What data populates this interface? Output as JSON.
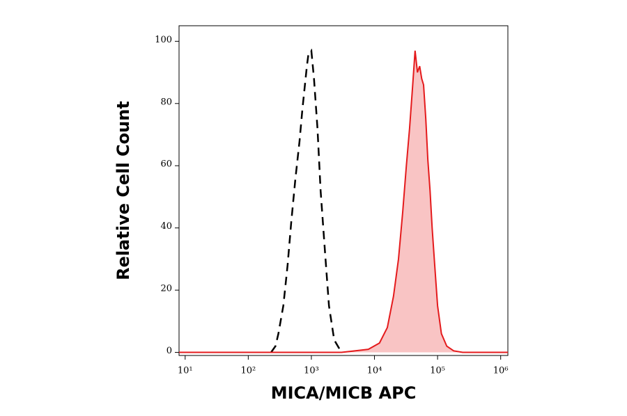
{
  "chart_data": {
    "type": "line",
    "x_label": "MICA/MICB APC",
    "y_label": "Relative Cell Count",
    "log_x": true,
    "xlim": [
      8,
      1300000
    ],
    "xticks": [
      {
        "value": 10,
        "label": "10¹"
      },
      {
        "value": 100,
        "label": "10²"
      },
      {
        "value": 1000,
        "label": "10³"
      },
      {
        "value": 10000,
        "label": "10⁴"
      },
      {
        "value": 100000,
        "label": "10⁵"
      },
      {
        "value": 1000000,
        "label": "10⁶"
      }
    ],
    "ylim": [
      -1,
      105
    ],
    "yticks": [
      0,
      20,
      40,
      60,
      80,
      100
    ],
    "series": [
      {
        "color": "#000000",
        "dashed": true,
        "x": [
          230,
          270,
          300,
          360,
          420,
          480,
          560,
          650,
          720,
          790,
          850,
          900,
          1000,
          1100,
          1250,
          1400,
          1650,
          1900,
          2300,
          3000
        ],
        "values": [
          0,
          2,
          6,
          15,
          28,
          42,
          56,
          68,
          78,
          86,
          92,
          96,
          97,
          88,
          72,
          52,
          32,
          15,
          4,
          0
        ]
      },
      {
        "color": "#e41a1c",
        "fill": "#f9c4c4",
        "dashed": false,
        "x": [
          8,
          3000,
          5000,
          8000,
          12000,
          16000,
          20000,
          24000,
          28000,
          32000,
          36000,
          40000,
          44000,
          48000,
          52000,
          56000,
          60000,
          65000,
          70000,
          76000,
          82000,
          90000,
          100000,
          115000,
          140000,
          180000,
          250000,
          1300000
        ],
        "values": [
          0,
          0,
          0.5,
          1,
          3,
          8,
          18,
          30,
          45,
          60,
          72,
          85,
          97,
          90,
          92,
          88,
          86,
          75,
          62,
          52,
          40,
          28,
          15,
          6,
          2,
          0.5,
          0,
          0
        ]
      }
    ]
  }
}
